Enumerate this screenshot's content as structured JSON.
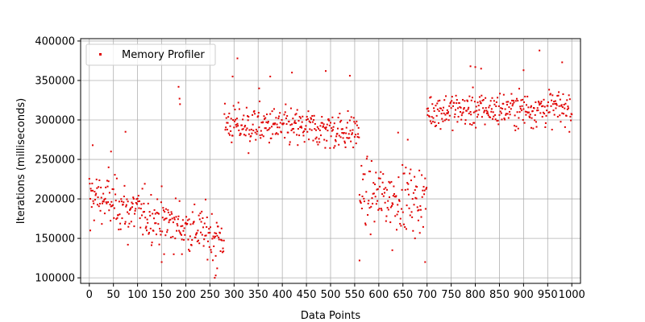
{
  "chart_data": {
    "type": "scatter",
    "title": "",
    "xlabel": "Data Points",
    "ylabel": "Iterations (milliseconds)",
    "xlim": [
      -18,
      1018
    ],
    "ylim": [
      93000,
      403000
    ],
    "xticks": [
      0,
      50,
      100,
      150,
      200,
      250,
      300,
      350,
      400,
      450,
      500,
      550,
      600,
      650,
      700,
      750,
      800,
      850,
      900,
      950,
      1000
    ],
    "yticks": [
      100000,
      150000,
      200000,
      250000,
      300000,
      350000,
      400000
    ],
    "grid": true,
    "legend_position": "top-left",
    "color": "#e00000",
    "series": [
      {
        "name": "Memory Profiler",
        "segments": [
          {
            "x_start": 0,
            "x_end": 90,
            "center_start": 205000,
            "center_end": 185000,
            "spread": 28000
          },
          {
            "x_start": 90,
            "x_end": 280,
            "center_start": 185000,
            "center_end": 150000,
            "spread": 28000
          },
          {
            "x_start": 280,
            "x_end": 560,
            "center_start": 295000,
            "center_end": 285000,
            "spread": 22000
          },
          {
            "x_start": 560,
            "x_end": 700,
            "center_start": 205000,
            "center_end": 200000,
            "spread": 35000
          },
          {
            "x_start": 700,
            "x_end": 1000,
            "center_start": 312000,
            "center_end": 315000,
            "spread": 20000
          }
        ],
        "outliers": [
          [
            2,
            160000
          ],
          [
            7,
            268000
          ],
          [
            40,
            240000
          ],
          [
            45,
            260000
          ],
          [
            75,
            285000
          ],
          [
            80,
            142000
          ],
          [
            150,
            120000
          ],
          [
            155,
            130000
          ],
          [
            185,
            342000
          ],
          [
            187,
            327000
          ],
          [
            188,
            320000
          ],
          [
            192,
            130000
          ],
          [
            260,
            100000
          ],
          [
            262,
            103000
          ],
          [
            265,
            112000
          ],
          [
            297,
            355000
          ],
          [
            307,
            378000
          ],
          [
            330,
            258000
          ],
          [
            352,
            340000
          ],
          [
            375,
            355000
          ],
          [
            420,
            360000
          ],
          [
            490,
            362000
          ],
          [
            540,
            356000
          ],
          [
            560,
            122000
          ],
          [
            628,
            135000
          ],
          [
            640,
            284000
          ],
          [
            660,
            275000
          ],
          [
            675,
            150000
          ],
          [
            696,
            120000
          ],
          [
            790,
            368000
          ],
          [
            800,
            367000
          ],
          [
            812,
            365000
          ],
          [
            900,
            363000
          ],
          [
            933,
            388000
          ],
          [
            980,
            373000
          ],
          [
            916,
            290000
          ]
        ]
      }
    ]
  }
}
